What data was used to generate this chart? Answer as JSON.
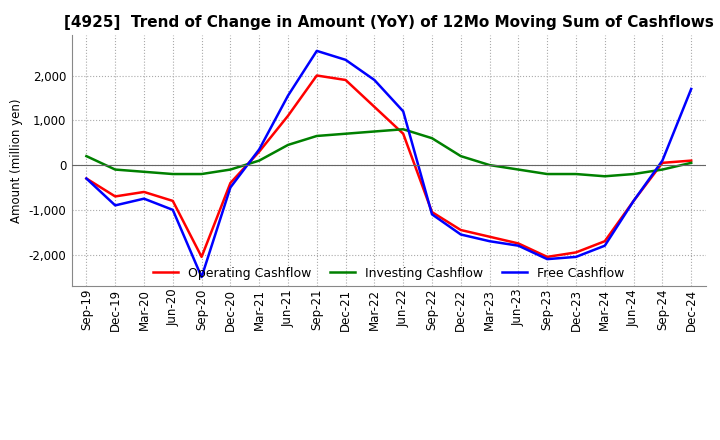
{
  "title": "[4925]  Trend of Change in Amount (YoY) of 12Mo Moving Sum of Cashflows",
  "ylabel": "Amount (million yen)",
  "x_labels": [
    "Sep-19",
    "Dec-19",
    "Mar-20",
    "Jun-20",
    "Sep-20",
    "Dec-20",
    "Mar-21",
    "Jun-21",
    "Sep-21",
    "Dec-21",
    "Mar-22",
    "Jun-22",
    "Sep-22",
    "Dec-22",
    "Mar-23",
    "Jun-23",
    "Sep-23",
    "Dec-23",
    "Mar-24",
    "Jun-24",
    "Sep-24",
    "Dec-24"
  ],
  "operating": [
    -300,
    -700,
    -600,
    -800,
    -2050,
    -400,
    300,
    1100,
    2000,
    1900,
    1300,
    700,
    -1050,
    -1450,
    -1600,
    -1750,
    -2050,
    -1950,
    -1700,
    -800,
    50,
    100
  ],
  "investing": [
    200,
    -100,
    -150,
    -200,
    -200,
    -100,
    100,
    450,
    650,
    700,
    750,
    800,
    600,
    200,
    0,
    -100,
    -200,
    -200,
    -250,
    -200,
    -100,
    50
  ],
  "free": [
    -300,
    -900,
    -750,
    -1000,
    -2500,
    -500,
    350,
    1550,
    2550,
    2350,
    1900,
    1200,
    -1100,
    -1550,
    -1700,
    -1800,
    -2100,
    -2050,
    -1800,
    -800,
    100,
    1700
  ],
  "operating_color": "#ff0000",
  "investing_color": "#008000",
  "free_color": "#0000ff",
  "ylim": [
    -2700,
    2900
  ],
  "yticks": [
    -2000,
    -1000,
    0,
    1000,
    2000
  ],
  "background_color": "#ffffff",
  "grid_color": "#aaaaaa",
  "title_fontsize": 11,
  "legend_fontsize": 9,
  "axis_fontsize": 8.5
}
